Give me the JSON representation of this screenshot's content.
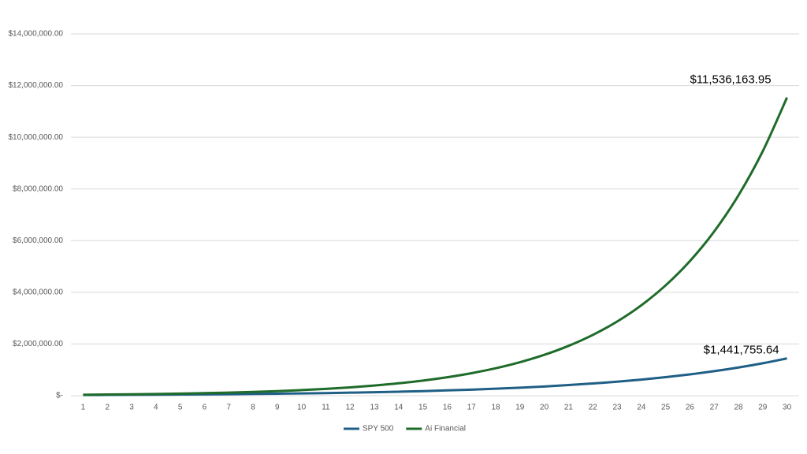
{
  "chart_data": {
    "type": "line",
    "categories": [
      "1",
      "2",
      "3",
      "4",
      "5",
      "6",
      "7",
      "8",
      "9",
      "10",
      "11",
      "12",
      "13",
      "14",
      "15",
      "16",
      "17",
      "18",
      "19",
      "20",
      "21",
      "22",
      "23",
      "24",
      "25",
      "26",
      "27",
      "28",
      "29",
      "30"
    ],
    "series": [
      {
        "name": "SPY 500",
        "color": "#1f5f86",
        "values": [
          25000,
          29000,
          33000,
          38000,
          44000,
          50000,
          58000,
          67000,
          77000,
          88000,
          101000,
          117000,
          134000,
          154000,
          177000,
          204000,
          234000,
          269000,
          310000,
          356000,
          410000,
          471000,
          542000,
          623000,
          717000,
          824000,
          948000,
          1090000,
          1254000,
          1441755.64
        ],
        "value_labels": [
          null,
          null,
          null,
          null,
          null,
          null,
          null,
          null,
          null,
          null,
          null,
          null,
          null,
          null,
          null,
          null,
          null,
          null,
          null,
          null,
          null,
          null,
          null,
          null,
          null,
          null,
          null,
          null,
          null,
          "$1,441,755.64"
        ]
      },
      {
        "name": "Ai Financial",
        "color": "#1e6b2a",
        "values": [
          36000,
          44000,
          54000,
          66000,
          80000,
          98000,
          119000,
          145000,
          177000,
          216000,
          264000,
          322000,
          393000,
          479000,
          584000,
          713000,
          870000,
          1061000,
          1295000,
          1579000,
          1927000,
          2351000,
          2868000,
          3499000,
          4268000,
          5207000,
          6353000,
          7751000,
          9456000,
          11536163.95
        ],
        "value_labels": [
          null,
          null,
          null,
          null,
          null,
          null,
          null,
          null,
          null,
          null,
          null,
          null,
          null,
          null,
          null,
          null,
          null,
          null,
          null,
          null,
          null,
          null,
          null,
          null,
          null,
          null,
          null,
          null,
          null,
          "$11,536,163.95"
        ]
      }
    ],
    "ylim": [
      0,
      14000000
    ],
    "yticks": [
      {
        "value": 0,
        "label": "$-"
      },
      {
        "value": 2000000,
        "label": "$2,000,000.00"
      },
      {
        "value": 4000000,
        "label": "$4,000,000.00"
      },
      {
        "value": 6000000,
        "label": "$6,000,000.00"
      },
      {
        "value": 8000000,
        "label": "$8,000,000.00"
      },
      {
        "value": 10000000,
        "label": "$10,000,000.00"
      },
      {
        "value": 12000000,
        "label": "$12,000,000.00"
      },
      {
        "value": 14000000,
        "label": "$14,000,000.00"
      }
    ],
    "grid": true,
    "legend": "bottom"
  }
}
